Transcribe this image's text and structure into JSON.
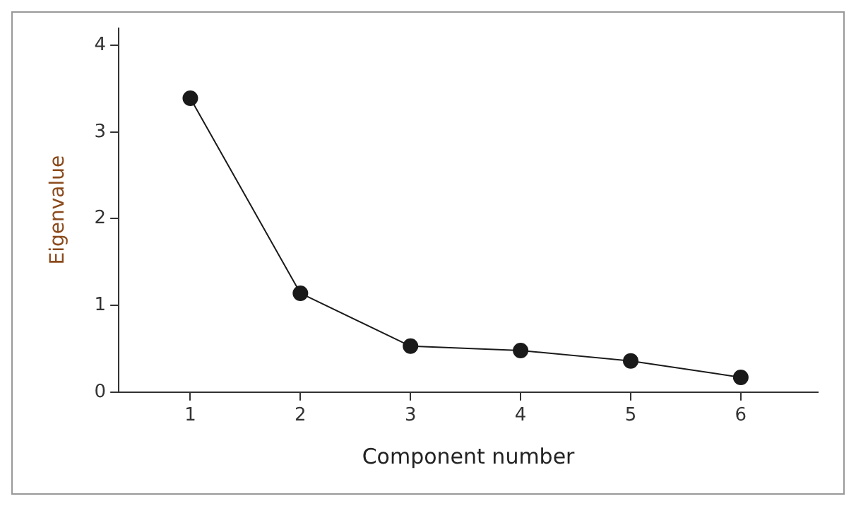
{
  "chart_data": {
    "type": "line",
    "xlabel": "Component number",
    "ylabel": "Eigenvalue",
    "x": [
      1,
      2,
      3,
      4,
      5,
      6
    ],
    "series": [
      {
        "color": "#1a1a1a",
        "values": [
          3.39,
          1.14,
          0.53,
          0.48,
          0.36,
          0.17
        ]
      }
    ],
    "xlim": [
      0.35,
      6.7
    ],
    "xticks": [
      1,
      2,
      3,
      4,
      5,
      6
    ],
    "ylim": [
      0,
      4.2
    ],
    "yticks": [
      0,
      1,
      2,
      3,
      4
    ],
    "marker": "circle",
    "line_style": "solid",
    "grid": false,
    "legend": false
  }
}
